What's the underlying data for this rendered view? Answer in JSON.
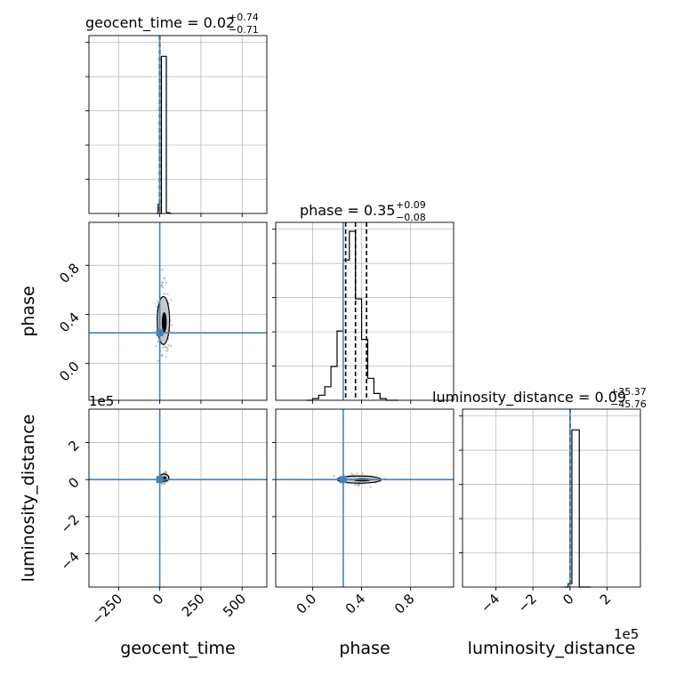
{
  "chart_data": {
    "type": "corner",
    "parameters": [
      "geocent_time",
      "phase",
      "luminosity_distance"
    ],
    "axis_labels": {
      "geocent_time": "geocent_time",
      "phase": "phase",
      "luminosity_distance": "luminosity_distance"
    },
    "titles": [
      {
        "name": "geocent_time",
        "text": "geocent_time = 0.02",
        "plus": "+0.74",
        "minus": "−0.71"
      },
      {
        "name": "phase",
        "text": "phase = 0.35",
        "plus": "+0.09",
        "minus": "−0.08"
      },
      {
        "name": "luminosity_distance",
        "text": "luminosity_distance = 0.09",
        "plus": "+35.37",
        "minus": "−45.76"
      }
    ],
    "offset_labels": {
      "panel_row3_y": "1e5",
      "panel_diag3_x": "1e5"
    },
    "ranges": {
      "geocent_time": [
        -430,
        650
      ],
      "phase": [
        -0.3,
        1.15
      ],
      "luminosity_distance_e5": [
        -5.8,
        3.8
      ]
    },
    "ticks": {
      "geocent_time": [
        -250,
        0,
        250,
        500
      ],
      "phase": [
        0.0,
        0.4,
        0.8
      ],
      "luminosity_distance_e5": [
        -4,
        -2,
        0,
        2
      ]
    },
    "tick_labels": {
      "geocent_time": [
        "−250",
        "0",
        "250",
        "500"
      ],
      "phase": [
        "0.0",
        "0.4",
        "0.8"
      ],
      "luminosity_distance_e5": [
        "−4",
        "−2",
        "0",
        "2"
      ]
    },
    "truths": {
      "geocent_time": 0.0,
      "phase": 0.25,
      "luminosity_distance_e5": 0.0
    },
    "quantiles": {
      "geocent_time": [
        -0.69,
        0.02,
        0.76
      ],
      "phase": [
        0.27,
        0.35,
        0.44
      ],
      "luminosity_distance_e5": [
        -0.00046,
        9e-07,
        0.00035
      ]
    },
    "histograms": {
      "geocent_time": {
        "edges": [
          -20,
          -10,
          0,
          10,
          20,
          30,
          40,
          50,
          60,
          70
        ],
        "counts": [
          0.0,
          0.055,
          0.0,
          0.93,
          0.93,
          0.93,
          0.005,
          0.005,
          0.0
        ]
      },
      "phase": {
        "edges": [
          -0.05,
          0.0,
          0.05,
          0.1,
          0.15,
          0.2,
          0.25,
          0.3,
          0.35,
          0.4,
          0.45,
          0.5,
          0.55,
          0.6,
          0.65,
          0.7
        ],
        "counts": [
          0.0,
          0.01,
          0.03,
          0.08,
          0.2,
          0.41,
          0.83,
          1.0,
          0.6,
          0.36,
          0.13,
          0.04,
          0.01,
          0.0,
          0.0
        ]
      },
      "luminosity_distance_e5": {
        "edges": [
          -0.3,
          -0.1,
          0.1,
          0.5,
          1.1
        ],
        "counts": [
          0.0,
          0.02,
          0.93,
          0.0
        ]
      }
    },
    "contours": {
      "geocent_time_vs_phase": {
        "center": [
          22,
          0.35
        ],
        "half_width": [
          25,
          0.15
        ]
      },
      "phase_vs_luminosity_distance": {
        "center": [
          0.38,
          0.0
        ],
        "half_width": [
          0.12,
          0.15
        ]
      },
      "geocent_time_vs_luminosity_distance": {
        "center": [
          25,
          0.1
        ],
        "half_width": [
          20,
          0.15
        ]
      }
    },
    "grid": true,
    "colors": {
      "truth": "#4682b4",
      "hist": "#000000",
      "grid": "#b0b0b0",
      "scatter": "#9a9a9a",
      "contour_fill": "#c5c9cd"
    }
  }
}
